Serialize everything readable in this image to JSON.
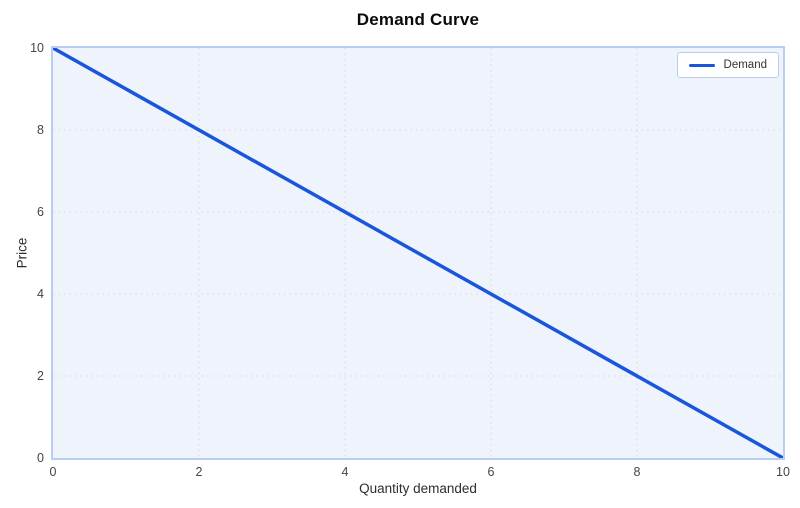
{
  "chart_data": {
    "type": "line",
    "title": "Demand Curve",
    "xlabel": "Quantity demanded",
    "ylabel": "Price",
    "xlim": [
      0,
      10
    ],
    "ylim": [
      0,
      10
    ],
    "x_ticks": [
      0,
      2,
      4,
      6,
      8,
      10
    ],
    "y_ticks": [
      0,
      2,
      4,
      6,
      8,
      10
    ],
    "grid": true,
    "grid_style": "dotted",
    "legend_position": "top-right",
    "series": [
      {
        "name": "Demand",
        "color": "#1a56db",
        "points": [
          {
            "x": 0,
            "y": 10
          },
          {
            "x": 10,
            "y": 0
          }
        ]
      }
    ]
  },
  "colors": {
    "figure_bg": "#ffffff",
    "plot_bg": "#eff3fb",
    "plot_border": "#b9cdf1",
    "grid": "#dcd6e0",
    "line": "#1a56db",
    "title_text": "#0a0a0a",
    "tick_text": "#454545",
    "axis_title_text": "#2e2e2e",
    "legend_bg": "#ffffff",
    "legend_border": "#b9cdf1",
    "legend_text": "#333333"
  }
}
